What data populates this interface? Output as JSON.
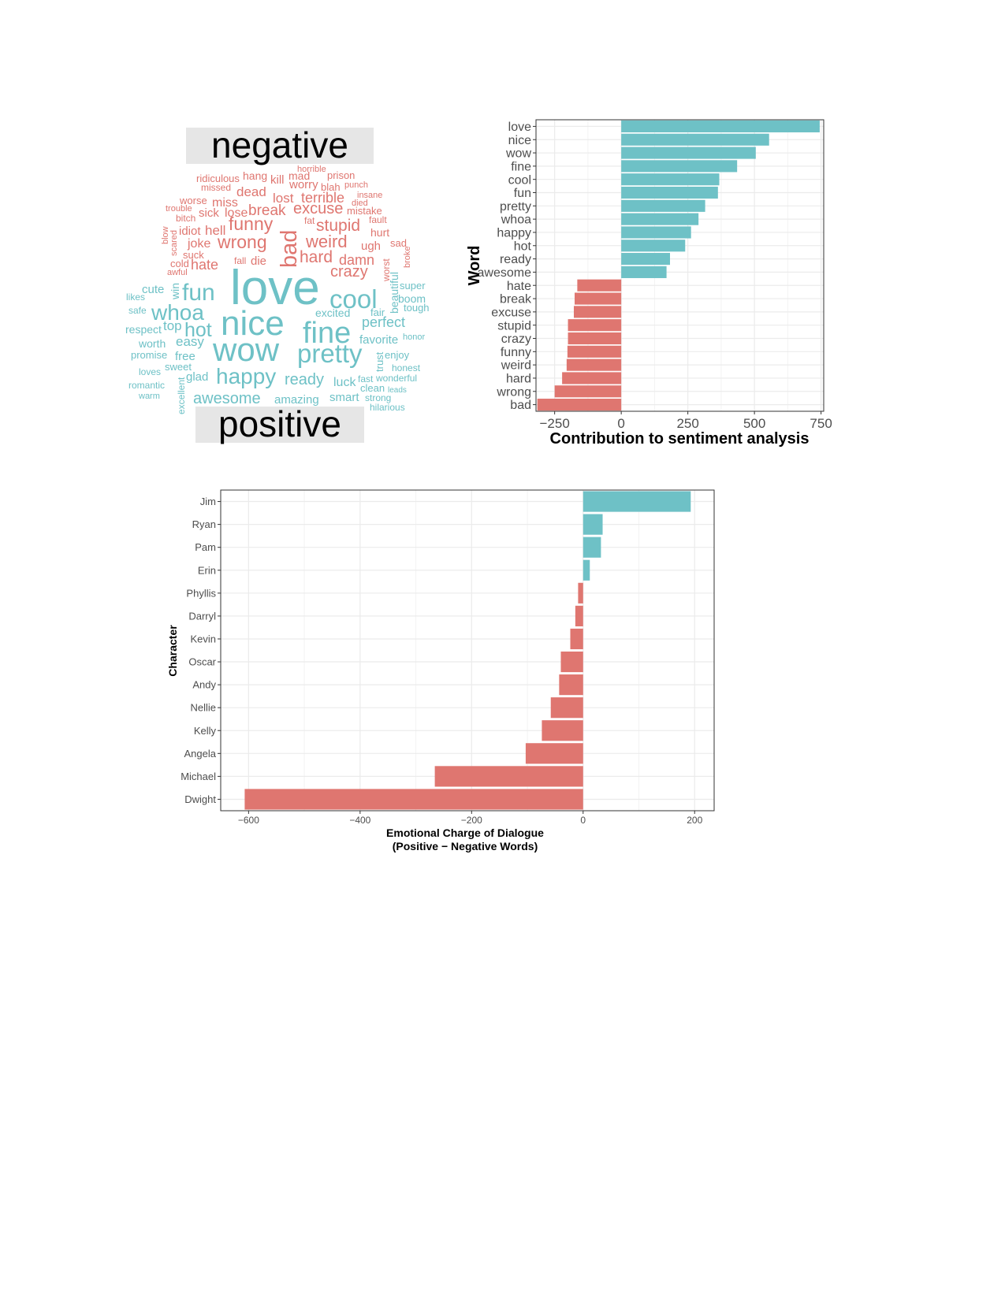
{
  "colors": {
    "positive": "#6ec1c6",
    "negative": "#df7670",
    "frame": "#333333",
    "grid": "#ebebeb",
    "strip": "#e6e6e6"
  },
  "wordcloud": {
    "labels": {
      "negative": "negative",
      "positive": "positive"
    },
    "negative_words": [
      "ridiculous",
      "hang",
      "kill",
      "mad",
      "horrible",
      "prison",
      "missed",
      "worry",
      "blah",
      "punch",
      "dead",
      "worse",
      "insane",
      "miss",
      "lost",
      "terrible",
      "died",
      "trouble",
      "break",
      "excuse",
      "mistake",
      "bitch",
      "sick",
      "lose",
      "fat",
      "fault",
      "funny",
      "blow",
      "idiot",
      "hell",
      "stupid",
      "hurt",
      "scared",
      "joke",
      "wrong",
      "bad",
      "weird",
      "sad",
      "ugh",
      "suck",
      "hard",
      "damn",
      "cold",
      "fall",
      "die",
      "worst",
      "broke",
      "awful",
      "hate",
      "crazy"
    ],
    "positive_words": [
      "love",
      "cute",
      "win",
      "fun",
      "super",
      "likes",
      "cool",
      "boom",
      "beautiful",
      "tough",
      "safe",
      "whoa",
      "excited",
      "fair",
      "nice",
      "respect",
      "top",
      "hot",
      "fine",
      "perfect",
      "honor",
      "worth",
      "easy",
      "favorite",
      "wow",
      "trust",
      "enjoy",
      "promise",
      "free",
      "pretty",
      "sweet",
      "honest",
      "loves",
      "glad",
      "happy",
      "ready",
      "luck",
      "fast",
      "wonderful",
      "romantic",
      "clean",
      "leads",
      "warm",
      "excellent",
      "awesome",
      "amazing",
      "smart",
      "strong",
      "hilarious"
    ]
  },
  "chart_data": [
    {
      "type": "bar",
      "orientation": "horizontal",
      "ylabel": "Word",
      "xlabel": "Contribution to sentiment analysis",
      "xlim": [
        -320,
        760
      ],
      "xticks": [
        -250,
        0,
        250,
        500,
        750
      ],
      "xtick_labels": [
        "−250",
        "0",
        "250",
        "500",
        "750"
      ],
      "categories": [
        "love",
        "nice",
        "wow",
        "fine",
        "cool",
        "fun",
        "pretty",
        "whoa",
        "happy",
        "hot",
        "ready",
        "awesome",
        "hate",
        "break",
        "excuse",
        "stupid",
        "crazy",
        "funny",
        "weird",
        "hard",
        "wrong",
        "bad"
      ],
      "values": [
        745,
        555,
        505,
        435,
        368,
        363,
        315,
        290,
        262,
        240,
        183,
        170,
        -165,
        -175,
        -178,
        -200,
        -200,
        -202,
        -205,
        -222,
        -250,
        -315
      ],
      "grid": true,
      "legend": "none"
    },
    {
      "type": "bar",
      "orientation": "horizontal",
      "ylabel": "Character",
      "xlabel": "Emotional Charge of Dialogue",
      "xlabel2": "(Positive − Negative Words)",
      "xlim": [
        -650,
        235
      ],
      "xticks": [
        -600,
        -400,
        -200,
        0,
        200
      ],
      "xtick_labels": [
        "−600",
        "−400",
        "−200",
        "0",
        "200"
      ],
      "categories": [
        "Jim",
        "Ryan",
        "Pam",
        "Erin",
        "Phyllis",
        "Darryl",
        "Kevin",
        "Oscar",
        "Andy",
        "Nellie",
        "Kelly",
        "Angela",
        "Michael",
        "Dwight"
      ],
      "values": [
        193,
        35,
        32,
        12,
        -9,
        -14,
        -23,
        -40,
        -43,
        -58,
        -74,
        -103,
        -266,
        -607
      ],
      "grid": true,
      "legend": "none"
    }
  ]
}
